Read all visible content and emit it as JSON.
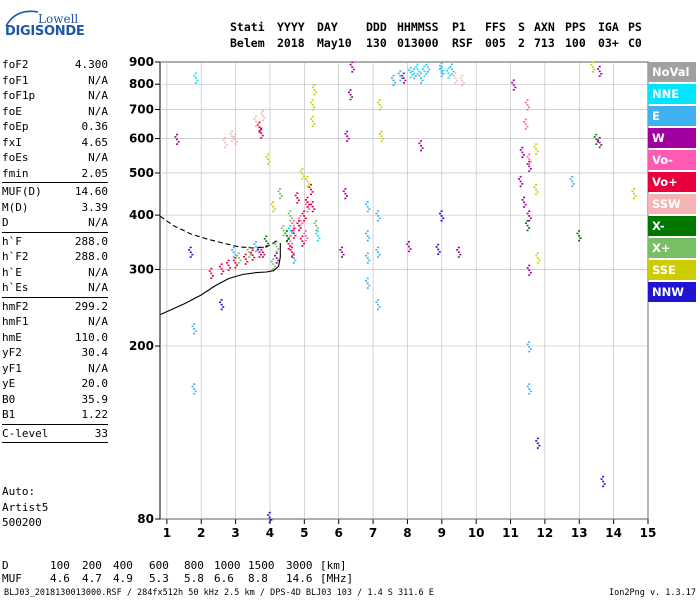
{
  "logo": {
    "line1": "Lowell",
    "line2": "DIGISONDE"
  },
  "header": {
    "row1": [
      "Stati",
      "YYYY",
      "DAY",
      "DDD",
      "HHMMSS",
      "P1",
      "FFS",
      "S",
      "AXN",
      "PPS",
      "IGA",
      "PS"
    ],
    "row2": [
      "Belem",
      "2018",
      "May10",
      "130",
      "013000",
      "RSF",
      "005",
      "2",
      "713",
      "100",
      "03+",
      "C0"
    ]
  },
  "parameters": {
    "group1": [
      {
        "name": "foF2",
        "value": "4.300"
      },
      {
        "name": "foF1",
        "value": "N/A"
      },
      {
        "name": "foF1p",
        "value": "N/A"
      },
      {
        "name": "foE",
        "value": "N/A"
      },
      {
        "name": "foEp",
        "value": "0.36"
      },
      {
        "name": "fxI",
        "value": "4.65"
      },
      {
        "name": "foEs",
        "value": "N/A"
      },
      {
        "name": "fmin",
        "value": "2.05"
      }
    ],
    "group2": [
      {
        "name": "MUF(D)",
        "value": "14.60"
      },
      {
        "name": "M(D)",
        "value": "3.39"
      },
      {
        "name": "D",
        "value": "N/A"
      }
    ],
    "group3": [
      {
        "name": "h`F",
        "value": "288.0"
      },
      {
        "name": "h`F2",
        "value": "288.0"
      },
      {
        "name": "h`E",
        "value": "N/A"
      },
      {
        "name": "h`Es",
        "value": "N/A"
      }
    ],
    "group4": [
      {
        "name": "hmF2",
        "value": "299.2"
      },
      {
        "name": "hmF1",
        "value": "N/A"
      },
      {
        "name": "hmE",
        "value": "110.0"
      },
      {
        "name": "yF2",
        "value": "30.4"
      },
      {
        "name": "yF1",
        "value": "N/A"
      },
      {
        "name": "yE",
        "value": "20.0"
      },
      {
        "name": "B0",
        "value": "35.9"
      },
      {
        "name": "B1",
        "value": "1.22"
      }
    ],
    "group5": [
      {
        "name": "C-level",
        "value": "33"
      }
    ]
  },
  "autoscaling": {
    "line1": "Auto:",
    "line2": "Artist5",
    "line3": "500200"
  },
  "legend": [
    {
      "label": "NoVal",
      "color": "#a0a0a0"
    },
    {
      "label": "NNE",
      "color": "#00e5ff"
    },
    {
      "label": "E",
      "color": "#3fb0f0"
    },
    {
      "label": "W",
      "color": "#a000a0"
    },
    {
      "label": "Vo-",
      "color": "#ff5ab4"
    },
    {
      "label": "Vo+",
      "color": "#e8003c"
    },
    {
      "label": "SSW",
      "color": "#f5b4b4"
    },
    {
      "label": "X-",
      "color": "#007800"
    },
    {
      "label": "X+",
      "color": "#78be64"
    },
    {
      "label": "SSE",
      "color": "#cccc00"
    },
    {
      "label": "NNW",
      "color": "#1e14d2"
    }
  ],
  "muf_table": {
    "d_label": "D",
    "d_values": [
      "100",
      "200",
      "400",
      "600",
      "800",
      "1000",
      "1500",
      "3000"
    ],
    "d_unit": "[km]",
    "muf_label": "MUF",
    "muf_values": [
      "4.6",
      "4.7",
      "4.9",
      "5.3",
      "5.8",
      "6.6",
      "8.8",
      "14.6"
    ],
    "muf_unit": "[MHz]"
  },
  "footer": {
    "info": "BLJ03_2018130013000.RSF / 284fx512h 50 kHz 2.5 km / DPS-4D BLJ03 103 / 1.4 S 311.6 E",
    "version": "Ion2Png v. 1.3.17"
  },
  "chart_data": {
    "type": "scatter",
    "title": "",
    "xlabel": "",
    "ylabel": "",
    "x_ticks": [
      1,
      2,
      3,
      4,
      5,
      6,
      7,
      8,
      9,
      10,
      11,
      12,
      13,
      14,
      15
    ],
    "y_ticks": [
      80,
      200,
      300,
      400,
      500,
      600,
      700,
      800,
      900
    ],
    "xlim": [
      0.8,
      15.0
    ],
    "ylim": [
      80,
      900
    ],
    "y_scale": "log",
    "grid": true,
    "series": [
      {
        "name": "NNE",
        "color": "#00e5ff",
        "points": [
          [
            8.1,
            855
          ],
          [
            8.3,
            870
          ],
          [
            8.5,
            860
          ],
          [
            9.2,
            852
          ],
          [
            9.0,
            875
          ],
          [
            1.85,
            830
          ],
          [
            4.6,
            370
          ],
          [
            5.4,
            360
          ]
        ]
      },
      {
        "name": "E",
        "color": "#3fb0f0",
        "points": [
          [
            6.85,
            280
          ],
          [
            6.85,
            320
          ],
          [
            6.85,
            360
          ],
          [
            6.85,
            420
          ],
          [
            7.15,
            250
          ],
          [
            7.15,
            330
          ],
          [
            7.15,
            400
          ],
          [
            8.2,
            850
          ],
          [
            8.4,
            830
          ],
          [
            8.6,
            880
          ],
          [
            9.0,
            860
          ],
          [
            9.3,
            870
          ],
          [
            11.55,
            200
          ],
          [
            11.55,
            160
          ],
          [
            1.8,
            220
          ],
          [
            1.8,
            160
          ],
          [
            2.95,
            330
          ],
          [
            3.6,
            340
          ],
          [
            4.7,
            320
          ],
          [
            7.6,
            820
          ],
          [
            7.8,
            840
          ],
          [
            12.8,
            480
          ]
        ]
      },
      {
        "name": "W",
        "color": "#a000a0",
        "points": [
          [
            6.1,
            330
          ],
          [
            6.2,
            450
          ],
          [
            6.25,
            610
          ],
          [
            6.35,
            760
          ],
          [
            6.4,
            880
          ],
          [
            11.3,
            480
          ],
          [
            11.35,
            560
          ],
          [
            11.4,
            430
          ],
          [
            11.55,
            300
          ],
          [
            11.55,
            400
          ],
          [
            11.55,
            520
          ],
          [
            3.7,
            330
          ],
          [
            4.2,
            320
          ],
          [
            8.05,
            340
          ],
          [
            8.4,
            580
          ],
          [
            9.5,
            330
          ],
          [
            11.1,
            800
          ],
          [
            13.6,
            590
          ],
          [
            13.6,
            860
          ],
          [
            1.3,
            600
          ],
          [
            7.9,
            830
          ]
        ]
      },
      {
        "name": "Vo-",
        "color": "#ff5ab4",
        "points": [
          [
            5.05,
            360
          ],
          [
            5.1,
            420
          ],
          [
            4.9,
            390
          ],
          [
            4.6,
            350
          ],
          [
            4.7,
            380
          ],
          [
            11.45,
            650
          ],
          [
            11.5,
            720
          ],
          [
            11.55,
            540
          ]
        ]
      },
      {
        "name": "Vo+",
        "color": "#e8003c",
        "points": [
          [
            2.3,
            295
          ],
          [
            2.6,
            302
          ],
          [
            2.8,
            308
          ],
          [
            3.0,
            312
          ],
          [
            3.3,
            318
          ],
          [
            3.5,
            325
          ],
          [
            3.8,
            330
          ],
          [
            4.55,
            345
          ],
          [
            4.7,
            365
          ],
          [
            4.85,
            380
          ],
          [
            5.0,
            400
          ],
          [
            5.1,
            430
          ],
          [
            5.2,
            460
          ],
          [
            5.25,
            420
          ],
          [
            4.95,
            350
          ],
          [
            4.65,
            330
          ],
          [
            4.8,
            440
          ],
          [
            3.7,
            640
          ],
          [
            3.75,
            620
          ]
        ]
      },
      {
        "name": "SSW",
        "color": "#f5b4b4",
        "points": [
          [
            2.9,
            610
          ],
          [
            3.0,
            600
          ],
          [
            2.7,
            590
          ],
          [
            3.6,
            660
          ],
          [
            3.8,
            680
          ],
          [
            9.4,
            830
          ],
          [
            9.6,
            820
          ]
        ]
      },
      {
        "name": "X-",
        "color": "#007800",
        "points": [
          [
            13.0,
            360
          ],
          [
            11.5,
            380
          ],
          [
            13.5,
            600
          ],
          [
            4.5,
            360
          ],
          [
            3.9,
            350
          ]
        ]
      },
      {
        "name": "X+",
        "color": "#78be64",
        "points": [
          [
            4.2,
            340
          ],
          [
            4.4,
            370
          ],
          [
            4.6,
            400
          ],
          [
            4.3,
            450
          ],
          [
            5.35,
            380
          ],
          [
            3.1,
            320
          ],
          [
            3.4,
            330
          ],
          [
            4.1,
            310
          ]
        ]
      },
      {
        "name": "SSE",
        "color": "#cccc00",
        "points": [
          [
            5.25,
            720
          ],
          [
            5.3,
            780
          ],
          [
            5.25,
            660
          ],
          [
            4.95,
            500
          ],
          [
            5.1,
            480
          ],
          [
            7.2,
            720
          ],
          [
            7.25,
            610
          ],
          [
            11.75,
            570
          ],
          [
            11.75,
            460
          ],
          [
            11.8,
            320
          ],
          [
            3.95,
            540
          ],
          [
            4.1,
            420
          ],
          [
            14.6,
            450
          ],
          [
            13.4,
            880
          ]
        ]
      },
      {
        "name": "NNW",
        "color": "#1e14d2",
        "points": [
          [
            1.7,
            330
          ],
          [
            2.6,
            250
          ],
          [
            4.0,
            81
          ],
          [
            9.0,
            400
          ],
          [
            11.8,
            120
          ],
          [
            13.7,
            98
          ],
          [
            8.9,
            335
          ]
        ]
      }
    ],
    "profile_curves": [
      {
        "name": "ordinary_trace",
        "style": "solid",
        "points": [
          [
            0.8,
            236
          ],
          [
            1.5,
            250
          ],
          [
            2.0,
            262
          ],
          [
            2.4,
            275
          ],
          [
            2.8,
            286
          ],
          [
            3.2,
            292
          ],
          [
            3.6,
            295
          ],
          [
            3.9,
            296
          ],
          [
            4.1,
            298
          ],
          [
            4.25,
            305
          ],
          [
            4.3,
            320
          ],
          [
            4.3,
            345
          ]
        ]
      },
      {
        "name": "extended_trace",
        "style": "dashed",
        "points": [
          [
            0.8,
            398
          ],
          [
            1.2,
            378
          ],
          [
            1.7,
            362
          ],
          [
            2.2,
            352
          ],
          [
            2.7,
            344
          ],
          [
            3.1,
            338
          ],
          [
            3.5,
            336
          ],
          [
            3.9,
            338
          ],
          [
            4.1,
            345
          ],
          [
            4.2,
            350
          ]
        ]
      }
    ]
  }
}
